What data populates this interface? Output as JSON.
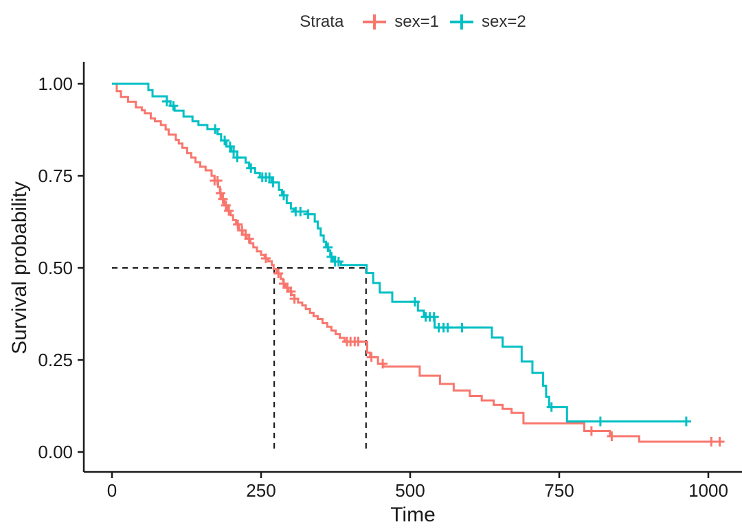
{
  "legend": {
    "title": "Strata",
    "items": [
      {
        "label": "sex=1",
        "color": "#F8766D"
      },
      {
        "label": "sex=2",
        "color": "#00BFC4"
      }
    ]
  },
  "chart_data": {
    "type": "line",
    "subtype": "kaplan-meier-step-curve",
    "title": "",
    "xlabel": "Time",
    "ylabel": "Survival probability",
    "legend_position": "top",
    "grid": false,
    "x_ticks": [
      0,
      250,
      500,
      750,
      1000
    ],
    "x_tick_labels": [
      "0",
      "250",
      "500",
      "750",
      "1000"
    ],
    "y_ticks": [
      0,
      0.25,
      0.5,
      0.75,
      1
    ],
    "y_tick_labels": [
      "0.00",
      "0.25",
      "0.50",
      "0.75",
      "1.00"
    ],
    "xlim": [
      -47,
      1057
    ],
    "ylim": [
      -0.054,
      1.061
    ],
    "axis_color": "#1a1a1a",
    "median_survival": {
      "probability": 0.5,
      "times": [
        272,
        426
      ],
      "line_style": "dashed",
      "color": "#1a1a1a"
    },
    "series": [
      {
        "name": "sex=1",
        "color": "#F8766D",
        "start": [
          0,
          1.0
        ],
        "steps": [
          [
            8,
            0.98
          ],
          [
            15,
            0.964
          ],
          [
            27,
            0.951
          ],
          [
            40,
            0.936
          ],
          [
            50,
            0.928
          ],
          [
            55,
            0.92
          ],
          [
            65,
            0.906
          ],
          [
            72,
            0.898
          ],
          [
            82,
            0.888
          ],
          [
            90,
            0.876
          ],
          [
            95,
            0.862
          ],
          [
            107,
            0.848
          ],
          [
            112,
            0.838
          ],
          [
            118,
            0.826
          ],
          [
            126,
            0.812
          ],
          [
            133,
            0.8
          ],
          [
            140,
            0.787
          ],
          [
            148,
            0.775
          ],
          [
            157,
            0.765
          ],
          [
            167,
            0.75
          ],
          [
            172,
            0.737
          ],
          [
            178,
            0.72
          ],
          [
            181,
            0.703
          ],
          [
            184,
            0.687
          ],
          [
            188,
            0.67
          ],
          [
            193,
            0.655
          ],
          [
            199,
            0.643
          ],
          [
            203,
            0.63
          ],
          [
            208,
            0.618
          ],
          [
            213,
            0.602
          ],
          [
            219,
            0.59
          ],
          [
            226,
            0.579
          ],
          [
            232,
            0.567
          ],
          [
            237,
            0.556
          ],
          [
            243,
            0.545
          ],
          [
            250,
            0.535
          ],
          [
            256,
            0.526
          ],
          [
            262,
            0.518
          ],
          [
            268,
            0.508
          ],
          [
            271,
            0.497
          ],
          [
            276,
            0.485
          ],
          [
            283,
            0.47
          ],
          [
            287,
            0.457
          ],
          [
            291,
            0.446
          ],
          [
            296,
            0.436
          ],
          [
            301,
            0.426
          ],
          [
            306,
            0.416
          ],
          [
            312,
            0.406
          ],
          [
            319,
            0.398
          ],
          [
            325,
            0.389
          ],
          [
            332,
            0.378
          ],
          [
            338,
            0.369
          ],
          [
            345,
            0.361
          ],
          [
            353,
            0.35
          ],
          [
            361,
            0.34
          ],
          [
            368,
            0.33
          ],
          [
            375,
            0.32
          ],
          [
            382,
            0.31
          ],
          [
            390,
            0.3
          ],
          [
            428,
            0.27
          ],
          [
            433,
            0.258
          ],
          [
            446,
            0.24
          ],
          [
            455,
            0.232
          ],
          [
            516,
            0.207
          ],
          [
            550,
            0.185
          ],
          [
            573,
            0.167
          ],
          [
            600,
            0.152
          ],
          [
            620,
            0.14
          ],
          [
            640,
            0.128
          ],
          [
            655,
            0.117
          ],
          [
            670,
            0.106
          ],
          [
            690,
            0.078
          ],
          [
            792,
            0.057
          ],
          [
            835,
            0.043
          ],
          [
            884,
            0.028
          ]
        ],
        "censor_times": [
          172,
          177,
          182,
          186,
          191,
          196,
          211,
          218,
          224,
          230,
          258,
          279,
          288,
          294,
          300,
          306,
          394,
          400,
          407,
          413,
          435,
          454,
          804,
          838,
          1005,
          1019
        ],
        "end_time": 1026,
        "median": 272
      },
      {
        "name": "sex=2",
        "color": "#00BFC4",
        "start": [
          0,
          1.0
        ],
        "steps": [
          [
            61,
            0.983
          ],
          [
            68,
            0.966
          ],
          [
            92,
            0.952
          ],
          [
            98,
            0.94
          ],
          [
            105,
            0.927
          ],
          [
            120,
            0.911
          ],
          [
            135,
            0.898
          ],
          [
            145,
            0.888
          ],
          [
            160,
            0.877
          ],
          [
            177,
            0.863
          ],
          [
            183,
            0.846
          ],
          [
            192,
            0.83
          ],
          [
            200,
            0.816
          ],
          [
            210,
            0.8
          ],
          [
            224,
            0.786
          ],
          [
            230,
            0.771
          ],
          [
            240,
            0.758
          ],
          [
            248,
            0.746
          ],
          [
            268,
            0.732
          ],
          [
            280,
            0.712
          ],
          [
            285,
            0.697
          ],
          [
            293,
            0.676
          ],
          [
            300,
            0.661
          ],
          [
            305,
            0.653
          ],
          [
            328,
            0.646
          ],
          [
            340,
            0.626
          ],
          [
            345,
            0.607
          ],
          [
            350,
            0.588
          ],
          [
            355,
            0.571
          ],
          [
            359,
            0.556
          ],
          [
            363,
            0.547
          ],
          [
            366,
            0.53
          ],
          [
            371,
            0.517
          ],
          [
            384,
            0.508
          ],
          [
            427,
            0.486
          ],
          [
            438,
            0.459
          ],
          [
            449,
            0.433
          ],
          [
            470,
            0.408
          ],
          [
            513,
            0.384
          ],
          [
            523,
            0.367
          ],
          [
            541,
            0.338
          ],
          [
            637,
            0.311
          ],
          [
            655,
            0.286
          ],
          [
            687,
            0.246
          ],
          [
            705,
            0.215
          ],
          [
            723,
            0.18
          ],
          [
            728,
            0.15
          ],
          [
            733,
            0.122
          ],
          [
            763,
            0.083
          ]
        ],
        "censor_times": [
          92,
          103,
          173,
          189,
          198,
          204,
          210,
          233,
          252,
          258,
          264,
          270,
          288,
          308,
          316,
          329,
          362,
          368,
          374,
          380,
          508,
          526,
          533,
          540,
          548,
          556,
          563,
          587,
          737,
          819,
          963
        ],
        "end_time": 965,
        "median": 426
      }
    ]
  }
}
